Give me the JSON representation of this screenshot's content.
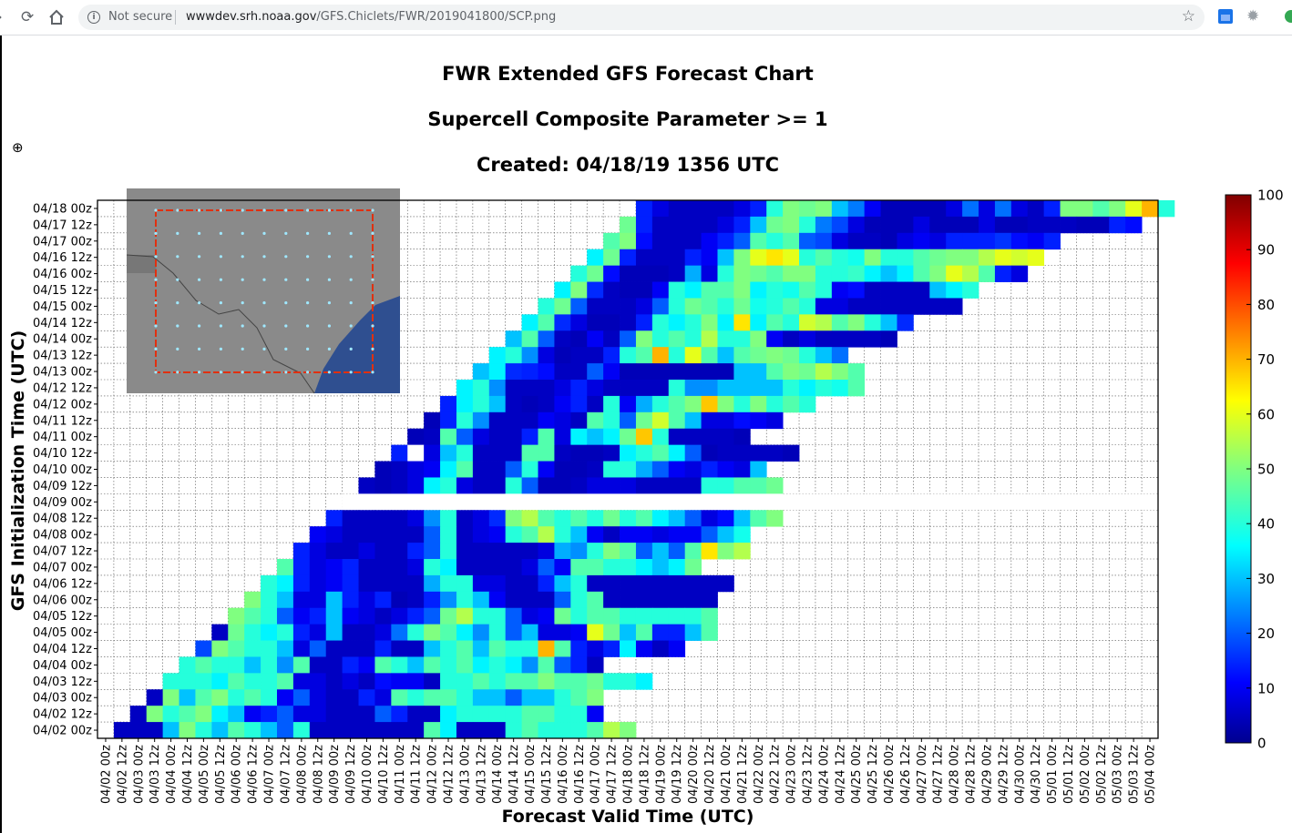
{
  "browser": {
    "security_label": "Not secure",
    "url_host": "wwwdev.srh.noaa.gov",
    "url_path": "/GFS.Chiclets/FWR/2019041800/SCP.png",
    "icons": [
      "back-icon",
      "reload-icon",
      "home-icon",
      "info-icon",
      "star-icon",
      "extension-icon",
      "settings-extension-icon"
    ]
  },
  "colors": {
    "colormap": [
      "#00008f",
      "#0000ff",
      "#0080ff",
      "#00ffff",
      "#80ff80",
      "#ffff00",
      "#ff8000",
      "#ff0000",
      "#800000"
    ],
    "frame_box": "#e03010",
    "grid": "#555555"
  },
  "chart_data": {
    "type": "heatmap",
    "title": "FWR Extended GFS Forecast Chart",
    "subtitle": "Supercell Composite Parameter >= 1",
    "created": "Created: 04/18/19 1356 UTC",
    "xlabel": "Forecast Valid Time (UTC)",
    "ylabel": "GFS Initialization Time (UTC)",
    "x_ticks": [
      "04/02 00z",
      "04/02 12z",
      "04/03 00z",
      "04/03 12z",
      "04/04 00z",
      "04/04 12z",
      "04/05 00z",
      "04/05 12z",
      "04/06 00z",
      "04/06 12z",
      "04/07 00z",
      "04/07 12z",
      "04/08 00z",
      "04/08 12z",
      "04/09 00z",
      "04/09 12z",
      "04/10 00z",
      "04/10 12z",
      "04/11 00z",
      "04/11 12z",
      "04/12 00z",
      "04/12 12z",
      "04/13 00z",
      "04/13 12z",
      "04/14 00z",
      "04/14 12z",
      "04/15 00z",
      "04/15 12z",
      "04/16 00z",
      "04/16 12z",
      "04/17 00z",
      "04/17 12z",
      "04/18 00z",
      "04/18 12z",
      "04/19 00z",
      "04/19 12z",
      "04/20 00z",
      "04/20 12z",
      "04/21 00z",
      "04/21 12z",
      "04/22 00z",
      "04/22 12z",
      "04/23 00z",
      "04/23 12z",
      "04/24 00z",
      "04/24 12z",
      "04/25 00z",
      "04/25 12z",
      "04/26 00z",
      "04/26 12z",
      "04/27 00z",
      "04/27 12z",
      "04/28 00z",
      "04/28 12z",
      "04/29 00z",
      "04/29 12z",
      "04/30 00z",
      "04/30 12z",
      "05/01 00z",
      "05/01 12z",
      "05/02 00z",
      "05/02 12z",
      "05/03 00z",
      "05/03 12z",
      "05/04 00z"
    ],
    "y_ticks": [
      "04/18 00z",
      "04/17 12z",
      "04/17 00z",
      "04/16 12z",
      "04/16 00z",
      "04/15 12z",
      "04/15 00z",
      "04/14 12z",
      "04/14 00z",
      "04/13 12z",
      "04/13 00z",
      "04/12 12z",
      "04/12 00z",
      "04/11 12z",
      "04/11 00z",
      "04/10 12z",
      "04/10 00z",
      "04/09 12z",
      "04/09 00z",
      "04/08 12z",
      "04/08 00z",
      "04/07 12z",
      "04/07 00z",
      "04/06 12z",
      "04/06 00z",
      "04/05 12z",
      "04/05 00z",
      "04/04 12z",
      "04/04 00z",
      "04/03 12z",
      "04/03 00z",
      "04/02 12z",
      "04/02 00z"
    ],
    "colorbar": {
      "ticks": [
        0,
        10,
        20,
        30,
        40,
        50,
        60,
        70,
        80,
        90,
        100
      ],
      "range": [
        0,
        100
      ]
    },
    "missing_run": "04/09 00z",
    "grid": true,
    "inset_map": "Texas/Oklahoma domain with forecast point grid",
    "rows": [
      {
        "init": "04/18 00z",
        "offset": 33,
        "values": [
          14,
          8,
          5,
          5,
          5,
          5,
          8,
          14,
          40,
          50,
          48,
          50,
          30,
          23,
          10,
          4,
          4,
          4,
          4,
          8,
          22,
          8,
          22,
          8,
          5,
          14,
          50,
          50,
          45,
          50,
          60,
          70,
          40
        ]
      },
      {
        "init": "04/17 12z",
        "offset": 32,
        "values": [
          48,
          14,
          5,
          5,
          5,
          5,
          8,
          14,
          30,
          48,
          50,
          40,
          23,
          18,
          8,
          4,
          4,
          4,
          8,
          4,
          4,
          4,
          8,
          4,
          4,
          5,
          5,
          5,
          4,
          4,
          14,
          12
        ]
      },
      {
        "init": "04/17 00z",
        "offset": 31,
        "values": [
          45,
          50,
          12,
          5,
          5,
          5,
          10,
          14,
          20,
          45,
          40,
          45,
          20,
          18,
          8,
          5,
          5,
          4,
          8,
          10,
          8,
          14,
          14,
          14,
          16,
          12,
          10,
          14
        ]
      },
      {
        "init": "04/16 12z",
        "offset": 30,
        "values": [
          35,
          48,
          14,
          5,
          5,
          5,
          14,
          10,
          30,
          50,
          60,
          65,
          60,
          40,
          45,
          40,
          38,
          50,
          40,
          40,
          45,
          48,
          50,
          50,
          55,
          60,
          58,
          60
        ]
      },
      {
        "init": "04/16 00z",
        "offset": 29,
        "values": [
          40,
          48,
          12,
          4,
          4,
          4,
          5,
          28,
          8,
          40,
          50,
          48,
          45,
          50,
          50,
          40,
          40,
          42,
          35,
          30,
          35,
          45,
          50,
          60,
          55,
          45,
          14,
          8
        ]
      },
      {
        "init": "04/15 12z",
        "offset": 28,
        "values": [
          35,
          50,
          15,
          5,
          4,
          4,
          10,
          40,
          35,
          45,
          45,
          50,
          35,
          40,
          38,
          45,
          40,
          10,
          12,
          5,
          5,
          5,
          5,
          30,
          35,
          40
        ]
      },
      {
        "init": "04/15 00z",
        "offset": 27,
        "values": [
          40,
          48,
          20,
          5,
          5,
          5,
          8,
          20,
          40,
          48,
          45,
          40,
          48,
          38,
          40,
          45,
          40,
          8,
          8,
          5,
          5,
          5,
          5,
          5,
          5,
          5
        ]
      },
      {
        "init": "04/14 12z",
        "offset": 26,
        "values": [
          35,
          45,
          15,
          8,
          4,
          4,
          5,
          14,
          40,
          35,
          40,
          50,
          35,
          65,
          35,
          45,
          40,
          58,
          55,
          45,
          50,
          40,
          30,
          15
        ]
      },
      {
        "init": "04/14 00z",
        "offset": 25,
        "values": [
          30,
          45,
          20,
          5,
          4,
          10,
          5,
          20,
          50,
          40,
          45,
          40,
          55,
          40,
          40,
          50,
          10,
          5,
          8,
          5,
          5,
          5,
          5,
          4
        ]
      },
      {
        "init": "04/13 12z",
        "offset": 24,
        "values": [
          35,
          40,
          25,
          8,
          4,
          5,
          5,
          14,
          40,
          45,
          70,
          40,
          60,
          45,
          30,
          45,
          48,
          50,
          48,
          40,
          30,
          22
        ]
      },
      {
        "init": "04/13 00z",
        "offset": 23,
        "values": [
          30,
          35,
          15,
          14,
          12,
          5,
          5,
          20,
          10,
          4,
          4,
          4,
          4,
          4,
          4,
          4,
          30,
          30,
          45,
          50,
          48,
          55,
          50,
          45
        ]
      },
      {
        "init": "04/12 12z",
        "offset": 22,
        "values": [
          35,
          40,
          25,
          5,
          5,
          5,
          8,
          14,
          8,
          5,
          5,
          5,
          5,
          40,
          25,
          25,
          30,
          30,
          30,
          30,
          40,
          35,
          40,
          38,
          45
        ]
      },
      {
        "init": "04/12 00z",
        "offset": 21,
        "values": [
          14,
          35,
          40,
          30,
          5,
          4,
          5,
          10,
          14,
          5,
          40,
          10,
          28,
          40,
          45,
          50,
          68,
          50,
          40,
          50,
          40,
          45,
          40
        ]
      },
      {
        "init": "04/11 12z",
        "offset": 20,
        "values": [
          4,
          14,
          40,
          25,
          5,
          5,
          5,
          10,
          8,
          5,
          45,
          40,
          20,
          48,
          58,
          45,
          30,
          8,
          8,
          12,
          10,
          8
        ]
      },
      {
        "init": "04/11 00z",
        "offset": 19,
        "values": [
          4,
          5,
          45,
          20,
          8,
          5,
          5,
          14,
          45,
          8,
          35,
          30,
          35,
          48,
          68,
          40,
          5,
          5,
          5,
          5,
          4
        ]
      },
      {
        "init": "04/10 12z",
        "offset": 18,
        "values": [
          14,
          0,
          8,
          30,
          40,
          5,
          5,
          5,
          45,
          45,
          5,
          4,
          4,
          5,
          35,
          40,
          45,
          35,
          20,
          4,
          5,
          5,
          5,
          5,
          4
        ]
      },
      {
        "init": "04/10 00z",
        "offset": 17,
        "values": [
          4,
          5,
          8,
          10,
          35,
          45,
          5,
          5,
          20,
          40,
          10,
          4,
          4,
          5,
          40,
          40,
          28,
          20,
          10,
          8,
          14,
          10,
          8,
          30
        ]
      },
      {
        "init": "04/09 12z",
        "offset": 16,
        "values": [
          5,
          4,
          5,
          8,
          35,
          40,
          8,
          5,
          5,
          40,
          20,
          4,
          4,
          5,
          8,
          8,
          8,
          5,
          5,
          5,
          5,
          40,
          40,
          45,
          45,
          48
        ]
      },
      {
        "init": "04/09 00z",
        "offset": 15,
        "values": []
      },
      {
        "init": "04/08 12z",
        "offset": 14,
        "values": [
          14,
          5,
          5,
          5,
          5,
          8,
          25,
          40,
          5,
          8,
          15,
          50,
          55,
          45,
          40,
          45,
          40,
          48,
          40,
          45,
          35,
          30,
          20,
          8,
          12,
          30,
          45,
          50
        ]
      },
      {
        "init": "04/08 00z",
        "offset": 13,
        "values": [
          10,
          8,
          5,
          5,
          5,
          5,
          5,
          20,
          40,
          5,
          8,
          10,
          40,
          45,
          55,
          40,
          30,
          10,
          5,
          10,
          10,
          8,
          10,
          10,
          20,
          30,
          38
        ]
      },
      {
        "init": "04/07 12z",
        "offset": 12,
        "values": [
          14,
          8,
          5,
          5,
          8,
          5,
          5,
          14,
          20,
          40,
          5,
          5,
          5,
          5,
          5,
          8,
          28,
          25,
          40,
          50,
          45,
          20,
          30,
          20,
          45,
          65,
          50,
          55
        ]
      },
      {
        "init": "04/07 00z",
        "offset": 11,
        "values": [
          45,
          14,
          8,
          10,
          14,
          5,
          5,
          5,
          8,
          40,
          35,
          5,
          5,
          5,
          5,
          8,
          20,
          10,
          45,
          45,
          40,
          40,
          35,
          30,
          35,
          48
        ]
      },
      {
        "init": "04/06 12z",
        "offset": 10,
        "values": [
          40,
          35,
          14,
          8,
          10,
          14,
          5,
          5,
          5,
          5,
          28,
          40,
          40,
          8,
          8,
          5,
          5,
          14,
          30,
          40,
          5,
          5,
          5,
          5,
          5,
          5,
          5,
          5,
          5
        ]
      },
      {
        "init": "04/06 00z",
        "offset": 9,
        "values": [
          50,
          40,
          30,
          8,
          8,
          30,
          14,
          8,
          14,
          4,
          5,
          14,
          25,
          40,
          30,
          10,
          5,
          5,
          5,
          20,
          40,
          45,
          5,
          5,
          5,
          5,
          5,
          5,
          5
        ]
      },
      {
        "init": "04/05 12z",
        "offset": 8,
        "values": [
          50,
          45,
          40,
          20,
          10,
          14,
          30,
          10,
          8,
          5,
          8,
          14,
          20,
          48,
          55,
          40,
          40,
          20,
          8,
          10,
          48,
          40,
          45,
          45,
          40,
          40,
          40,
          40,
          40,
          45
        ]
      },
      {
        "init": "04/05 00z",
        "offset": 7,
        "values": [
          5,
          48,
          40,
          35,
          40,
          14,
          8,
          30,
          5,
          5,
          8,
          22,
          40,
          50,
          45,
          35,
          25,
          40,
          20,
          30,
          8,
          8,
          10,
          60,
          48,
          30,
          45,
          14,
          14,
          30,
          45
        ]
      },
      {
        "init": "04/04 12z",
        "offset": 6,
        "values": [
          18,
          50,
          45,
          40,
          40,
          30,
          8,
          20,
          5,
          5,
          5,
          14,
          5,
          5,
          30,
          40,
          45,
          30,
          45,
          40,
          40,
          70,
          45,
          14,
          8,
          14,
          35,
          10,
          5,
          10
        ]
      },
      {
        "init": "04/04 00z",
        "offset": 5,
        "values": [
          40,
          45,
          40,
          40,
          30,
          40,
          25,
          45,
          5,
          5,
          14,
          10,
          45,
          40,
          30,
          45,
          40,
          45,
          35,
          40,
          35,
          25,
          45,
          20,
          14,
          5
        ]
      },
      {
        "init": "04/03 12z",
        "offset": 4,
        "values": [
          40,
          40,
          40,
          35,
          45,
          40,
          40,
          45,
          8,
          8,
          5,
          8,
          5,
          12,
          10,
          10,
          5,
          40,
          40,
          45,
          40,
          45,
          45,
          50,
          45,
          45,
          48,
          40,
          40,
          35
        ]
      },
      {
        "init": "04/03 00z",
        "offset": 3,
        "values": [
          5,
          50,
          30,
          45,
          50,
          40,
          45,
          40,
          10,
          20,
          8,
          5,
          5,
          14,
          8,
          45,
          40,
          45,
          45,
          40,
          30,
          30,
          20,
          30,
          30,
          40,
          45,
          50
        ]
      },
      {
        "init": "04/02 12z",
        "offset": 2,
        "values": [
          5,
          50,
          40,
          45,
          50,
          35,
          30,
          10,
          14,
          20,
          8,
          8,
          5,
          5,
          5,
          20,
          14,
          5,
          5,
          35,
          40,
          40,
          40,
          40,
          45,
          45,
          40,
          40,
          10
        ]
      },
      {
        "init": "04/02 00z",
        "offset": 1,
        "values": [
          5,
          5,
          5,
          30,
          50,
          40,
          30,
          45,
          40,
          30,
          20,
          40,
          5,
          5,
          5,
          5,
          5,
          5,
          5,
          45,
          35,
          5,
          5,
          5,
          40,
          45,
          40,
          40,
          40,
          45,
          55,
          50
        ]
      }
    ]
  }
}
